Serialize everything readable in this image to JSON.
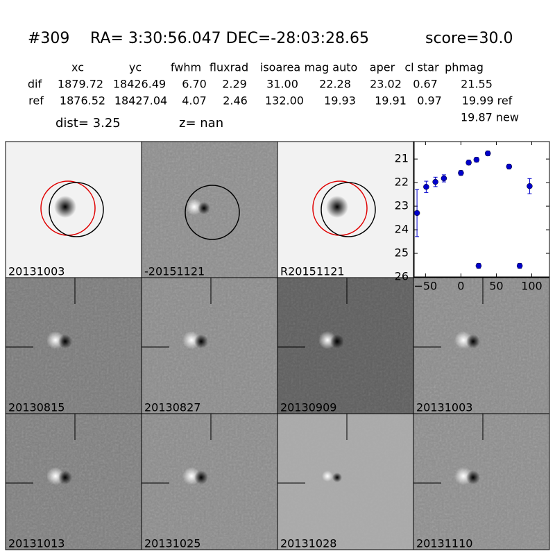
{
  "header": {
    "id": "#309",
    "coords": "RA= 3:30:56.047 DEC=-28:03:28.65",
    "score": "score=30.0"
  },
  "table": {
    "columns": [
      "xc",
      "yc",
      "fwhm",
      "fluxrad",
      "isoarea",
      "mag auto",
      "aper",
      "cl star",
      "phmag"
    ],
    "rows": [
      [
        "dif",
        "1879.72",
        "18426.49",
        "6.70",
        "2.29",
        "31.00",
        "22.28",
        "23.02",
        "0.67",
        "21.55"
      ],
      [
        "ref",
        "1876.52",
        "18427.04",
        "4.07",
        "2.46",
        "132.00",
        "19.93",
        "19.91",
        "0.97",
        "19.99 ref"
      ]
    ],
    "extra": "19.87 new"
  },
  "dist": "dist=  3.25",
  "z": "z=   nan",
  "panels": [
    {
      "label": "20131003"
    },
    {
      "label": "-20151121"
    },
    {
      "label": "R20151121"
    },
    {
      "label": "20130815"
    },
    {
      "label": "20130827"
    },
    {
      "label": "20130909"
    },
    {
      "label": "20131003",
      "label_color": "#ff0000"
    },
    {
      "label": "20131013"
    },
    {
      "label": "20131025"
    },
    {
      "label": "20131028"
    },
    {
      "label": "20131110"
    }
  ],
  "lightcurve": {
    "type": "scatter",
    "color": "#0000cc",
    "x": [
      -62,
      -49,
      -36,
      -24,
      0,
      11,
      22,
      38,
      68,
      97,
      25,
      83
    ],
    "values": [
      23.29,
      22.18,
      21.97,
      21.82,
      21.59,
      21.15,
      21.03,
      20.76,
      21.32,
      22.15,
      25.53,
      25.53
    ],
    "errors": [
      1.0,
      0.24,
      0.2,
      0.15,
      0.1,
      0.1,
      0.1,
      0.1,
      0.1,
      0.32,
      0.1,
      0.1
    ],
    "xlim": [
      -66,
      125
    ],
    "ylim": [
      20.26,
      26
    ],
    "invert_y": true,
    "xticks": [
      {
        "value": -50,
        "label": "−50"
      },
      0,
      50,
      100
    ],
    "yticks": [
      21,
      22,
      23,
      24,
      25,
      26
    ]
  }
}
